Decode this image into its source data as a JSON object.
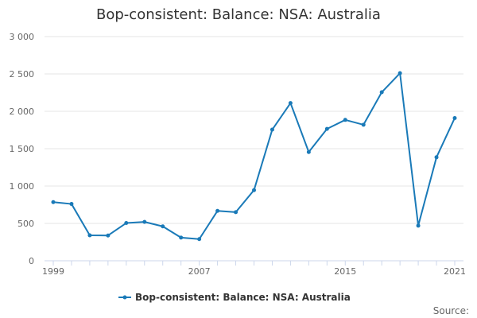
{
  "page": {
    "source_label": "Source:"
  },
  "chart_data": {
    "type": "line",
    "title": "Bop-consistent: Balance: NSA: Australia",
    "xlabel": "",
    "ylabel": "",
    "xlim": [
      1999,
      2021
    ],
    "ylim": [
      0,
      3000
    ],
    "x_tick_labels": [
      "1999",
      "2007",
      "2015",
      "2021"
    ],
    "x_tick_values": [
      1999,
      2007,
      2015,
      2021
    ],
    "y_tick_labels": [
      "0",
      "500",
      "1 000",
      "1 500",
      "2 000",
      "2 500",
      "3 000"
    ],
    "y_tick_values": [
      0,
      500,
      1000,
      1500,
      2000,
      2500,
      3000
    ],
    "grid": "horizontal",
    "legend_position": "bottom-center",
    "series": [
      {
        "name": "Bop-consistent: Balance: NSA: Australia",
        "color": "#1a7ab8",
        "x": [
          1999,
          2000,
          2001,
          2002,
          2003,
          2004,
          2005,
          2006,
          2007,
          2008,
          2009,
          2010,
          2011,
          2012,
          2013,
          2014,
          2015,
          2016,
          2017,
          2018,
          2019,
          2020,
          2021
        ],
        "values": [
          785,
          760,
          340,
          338,
          505,
          520,
          460,
          310,
          290,
          668,
          650,
          945,
          1755,
          2110,
          1455,
          1765,
          1885,
          1820,
          2255,
          2510,
          470,
          1385,
          1910
        ]
      }
    ]
  }
}
